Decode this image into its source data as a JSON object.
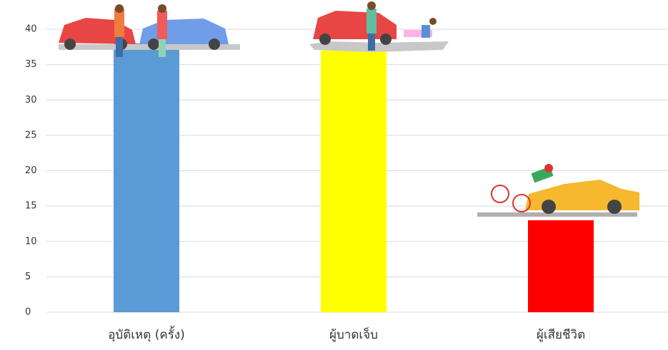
{
  "chart_data": {
    "type": "bar",
    "categories": [
      "อุบัติเหตุ (ครั้ง)",
      "ผู้บาดเจ็บ",
      "ผู้เสียชีวิต"
    ],
    "values": [
      38,
      37,
      13
    ],
    "colors": [
      "#5b9bd5",
      "#ffff00",
      "#ff0000"
    ],
    "ylim": [
      0,
      40
    ],
    "yticks": [
      0,
      5,
      10,
      15,
      20,
      25,
      30,
      35,
      40
    ],
    "grid": true
  }
}
